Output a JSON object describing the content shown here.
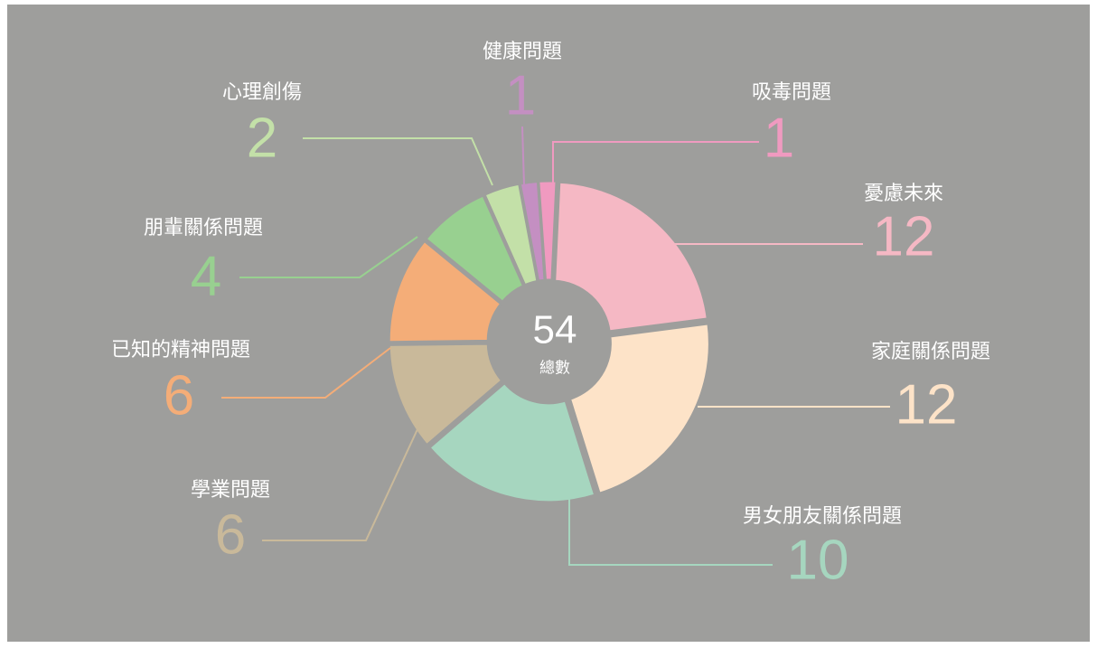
{
  "chart_data": {
    "type": "donut",
    "categories": [
      "吸毒問題",
      "憂慮未來",
      "家庭關係問題",
      "男女朋友關係問題",
      "學業問題",
      "已知的精神問題",
      "朋輩關係問題",
      "心理創傷",
      "健康問題"
    ],
    "values": [
      1,
      12,
      12,
      10,
      6,
      6,
      4,
      2,
      1
    ],
    "colors": [
      "#f09ac0",
      "#f5b8c4",
      "#fde3c8",
      "#a6d6bf",
      "#c9b99a",
      "#f4ad78",
      "#98d090",
      "#c3e0a8",
      "#c48fc2"
    ],
    "total": 54,
    "total_label": "總數"
  }
}
